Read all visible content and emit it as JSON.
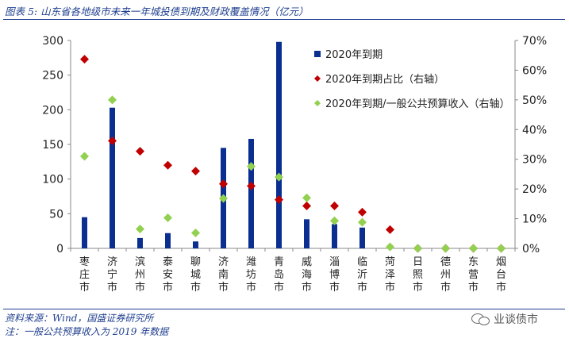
{
  "figure": {
    "title": "图表 5:  山东省各地级市未来一年城投债到期及财政覆盖情况（亿元）",
    "source": "资料来源：Wind，国盛证券研究所",
    "note": "注：一般公共预算收入为 2019 年数据",
    "watermark": "业谈债市",
    "watermark_icon": "wechat-icon"
  },
  "chart_data": {
    "type": "bar",
    "categories": [
      "枣庄市",
      "济宁市",
      "滨州市",
      "泰安市",
      "聊城市",
      "济南市",
      "潍坊市",
      "青岛市",
      "威海市",
      "淄博市",
      "临沂市",
      "菏泽市",
      "日照市",
      "德州市",
      "东营市",
      "烟台市"
    ],
    "series": [
      {
        "name": "2020年到期",
        "kind": "bar",
        "axis": "left",
        "color": "#0a2f91",
        "values": [
          45,
          203,
          15,
          22,
          10,
          145,
          158,
          298,
          42,
          35,
          30,
          0,
          0,
          0,
          0,
          0
        ]
      },
      {
        "name": "2020年到期占比（右轴）",
        "kind": "marker",
        "axis": "right",
        "color": "#c00000",
        "values": [
          0.637,
          0.362,
          0.327,
          0.28,
          0.26,
          0.217,
          0.21,
          0.164,
          0.143,
          0.143,
          0.122,
          0.063,
          0,
          0,
          0,
          0
        ]
      },
      {
        "name": "2020年到期/一般公共预算收入（右轴）",
        "kind": "marker",
        "axis": "right",
        "color": "#92d050",
        "values": [
          0.31,
          0.5,
          0.065,
          0.103,
          0.052,
          0.168,
          0.276,
          0.24,
          0.17,
          0.093,
          0.088,
          0.005,
          0,
          0,
          0,
          0
        ]
      }
    ],
    "y_left": {
      "min": 0,
      "max": 300,
      "ticks": [
        "0",
        "50",
        "100",
        "150",
        "200",
        "250",
        "300"
      ]
    },
    "y_right": {
      "min": 0,
      "max": 0.7,
      "ticks": [
        "0%",
        "10%",
        "20%",
        "30%",
        "40%",
        "50%",
        "60%",
        "70%"
      ]
    },
    "grid": false,
    "legend": "top-right"
  }
}
